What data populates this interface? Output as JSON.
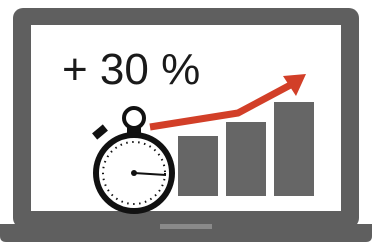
{
  "headline": "+ 30 %"
}
